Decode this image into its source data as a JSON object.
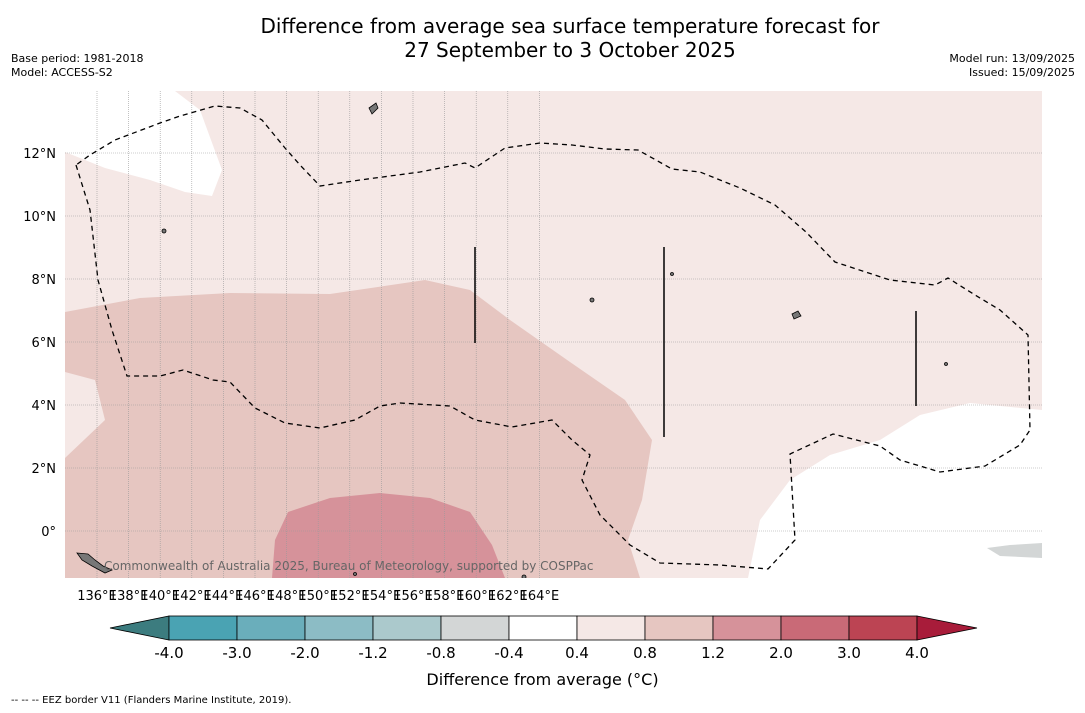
{
  "title": {
    "line1": "Difference from average sea surface temperature forecast for",
    "line2": "27 September to 3 October 2025"
  },
  "meta": {
    "base_period": "Base period: 1981-2018",
    "model": "Model: ACCESS-S2",
    "model_run": "Model run: 13/09/2025",
    "issued": "Issued: 15/09/2025"
  },
  "map": {
    "lon_labels": [
      "136°E",
      "138°E",
      "140°E",
      "142°E",
      "144°E",
      "146°E",
      "148°E",
      "150°E",
      "152°E",
      "154°E",
      "156°E",
      "158°E",
      "160°E",
      "162°E",
      "164°E"
    ],
    "lat_labels": [
      "12°N",
      "10°N",
      "8°N",
      "6°N",
      "4°N",
      "2°N",
      "0°"
    ],
    "attribution": "Commonwealth of Australia 2025, Bureau of Meteorology, supported by COSPPac"
  },
  "colorbar": {
    "ticks": [
      "-4.0",
      "-3.0",
      "-2.0",
      "-1.2",
      "-0.8",
      "-0.4",
      "0.4",
      "0.8",
      "1.2",
      "2.0",
      "3.0",
      "4.0"
    ],
    "colors": [
      "#4aa3b3",
      "#6aaebb",
      "#8cbcc5",
      "#abc9cc",
      "#d3d6d6",
      "#ffffff",
      "#f5e8e6",
      "#e6c6c1",
      "#d6929a",
      "#c96a77",
      "#bc4453"
    ],
    "under_color": "#3c7c7f",
    "over_color": "#a81c3a",
    "label": "Difference from average (°C)"
  },
  "footer": "--  --  -- EEZ border V11 (Flanders Marine Institute, 2019)."
}
